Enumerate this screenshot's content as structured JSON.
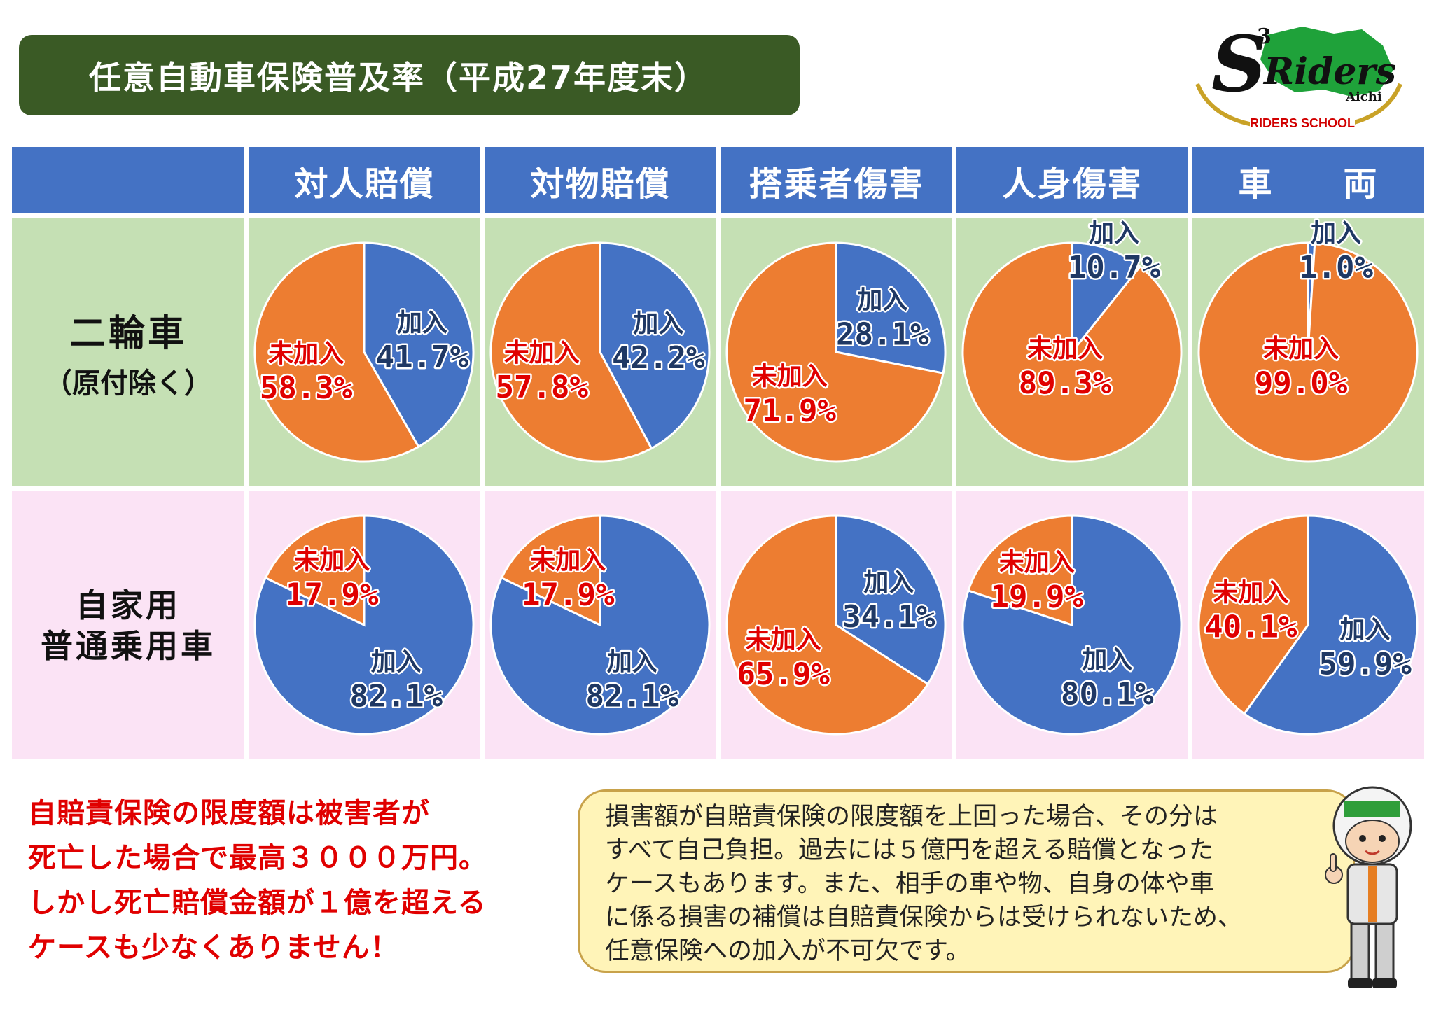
{
  "title": "任意自動車保険普及率（平成27年度末）",
  "logo": {
    "mark": "S",
    "superscript": "3",
    "name": "Riders",
    "region": "Aichi",
    "school": "RIDERS SCHOOL"
  },
  "columns": [
    "対人賠償",
    "対物賠償",
    "搭乗者傷害",
    "人身傷害",
    "車　　両"
  ],
  "rows": [
    {
      "main": "二輪車",
      "sub": "（原付除く）"
    },
    {
      "line1": "自家用",
      "line2": "普通乗用車"
    }
  ],
  "labels": {
    "joined": "加入",
    "not_joined": "未加入"
  },
  "colors": {
    "joined": "#4472c4",
    "not_joined": "#ed7d31",
    "joined_text": "#1f3864",
    "not_joined_text": "#e00000"
  },
  "chart_data": [
    {
      "type": "pie",
      "row": "二輪車（原付除く）",
      "column": "対人賠償",
      "categories": [
        "加入",
        "未加入"
      ],
      "values": [
        41.7,
        58.3
      ],
      "value_labels": [
        "41.7%",
        "58.3%"
      ]
    },
    {
      "type": "pie",
      "row": "二輪車（原付除く）",
      "column": "対物賠償",
      "categories": [
        "加入",
        "未加入"
      ],
      "values": [
        42.2,
        57.8
      ],
      "value_labels": [
        "42.2%",
        "57.8%"
      ]
    },
    {
      "type": "pie",
      "row": "二輪車（原付除く）",
      "column": "搭乗者傷害",
      "categories": [
        "加入",
        "未加入"
      ],
      "values": [
        28.1,
        71.9
      ],
      "value_labels": [
        "28.1%",
        "71.9%"
      ]
    },
    {
      "type": "pie",
      "row": "二輪車（原付除く）",
      "column": "人身傷害",
      "categories": [
        "加入",
        "未加入"
      ],
      "values": [
        10.7,
        89.3
      ],
      "value_labels": [
        "10.7%",
        "89.3%"
      ]
    },
    {
      "type": "pie",
      "row": "二輪車（原付除く）",
      "column": "車両",
      "categories": [
        "加入",
        "未加入"
      ],
      "values": [
        1.0,
        99.0
      ],
      "value_labels": [
        "1.0%",
        "99.0%"
      ]
    },
    {
      "type": "pie",
      "row": "自家用普通乗用車",
      "column": "対人賠償",
      "categories": [
        "加入",
        "未加入"
      ],
      "values": [
        82.1,
        17.9
      ],
      "value_labels": [
        "82.1%",
        "17.9%"
      ]
    },
    {
      "type": "pie",
      "row": "自家用普通乗用車",
      "column": "対物賠償",
      "categories": [
        "加入",
        "未加入"
      ],
      "values": [
        82.1,
        17.9
      ],
      "value_labels": [
        "82.1%",
        "17.9%"
      ]
    },
    {
      "type": "pie",
      "row": "自家用普通乗用車",
      "column": "搭乗者傷害",
      "categories": [
        "加入",
        "未加入"
      ],
      "values": [
        34.1,
        65.9
      ],
      "value_labels": [
        "34.1%",
        "65.9%"
      ]
    },
    {
      "type": "pie",
      "row": "自家用普通乗用車",
      "column": "人身傷害",
      "categories": [
        "加入",
        "未加入"
      ],
      "values": [
        80.1,
        19.9
      ],
      "value_labels": [
        "80.1%",
        "19.9%"
      ]
    },
    {
      "type": "pie",
      "row": "自家用普通乗用車",
      "column": "車両",
      "categories": [
        "加入",
        "未加入"
      ],
      "values": [
        59.9,
        40.1
      ],
      "value_labels": [
        "59.9%",
        "40.1%"
      ]
    }
  ],
  "note_left": [
    "自賠責保険の限度額は被害者が",
    "死亡した場合で最高３０００万円。",
    "しかし死亡賠償金額が１億を超える",
    "ケースも少なくありません！"
  ],
  "note_bubble": [
    "損害額が自賠責保険の限度額を上回った場合、その分は",
    "すべて自己負担。過去には５億円を超える賠償となった",
    "ケースもあります。また、相手の車や物、自身の体や車",
    "に係る損害の補償は自賠責保険からは受けられないため、",
    "任意保険への加入が不可欠です。"
  ],
  "mascot": {
    "icon": "rider-mascot-icon"
  }
}
